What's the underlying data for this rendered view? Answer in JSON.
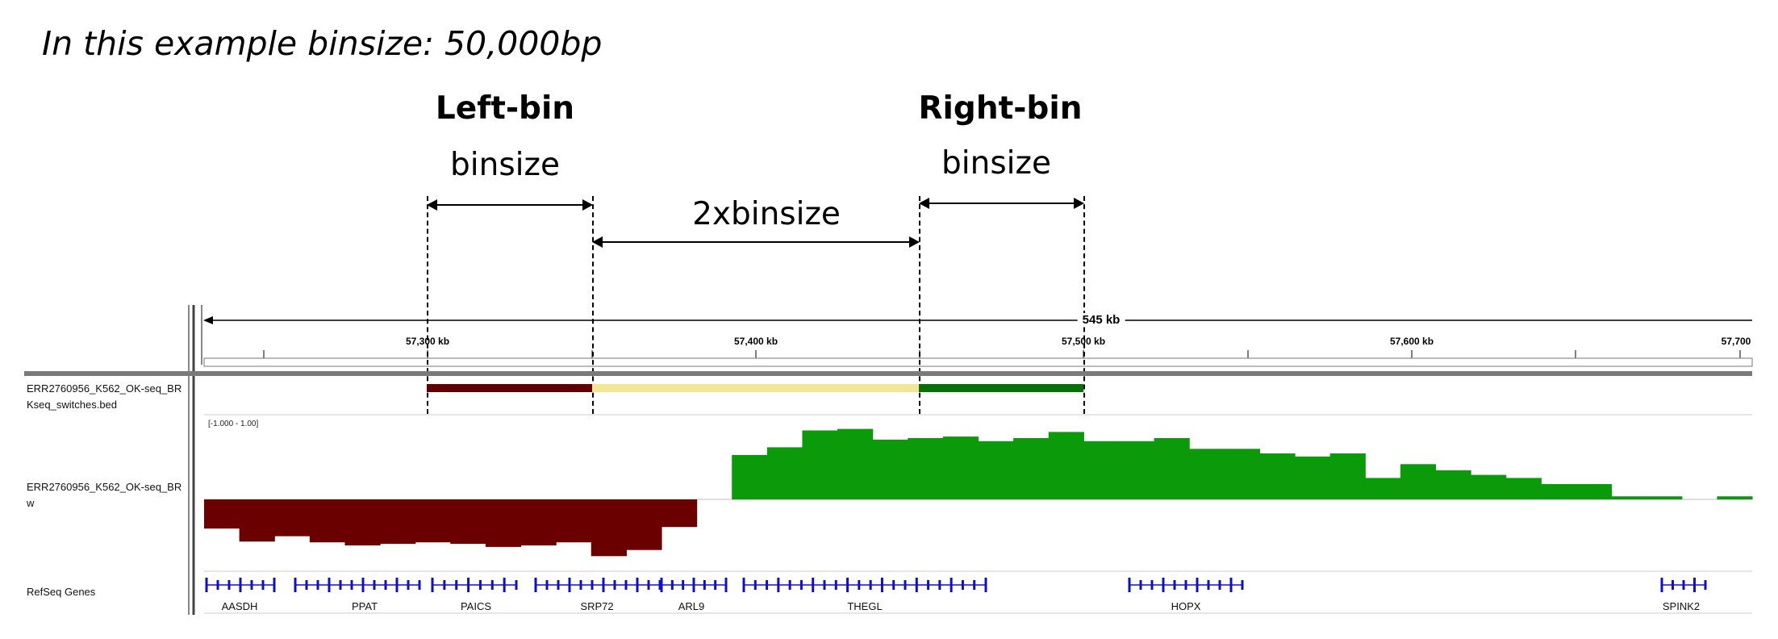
{
  "header": {
    "text": "In this example binsize: 50,000bp"
  },
  "annotations": {
    "left_bin_title": "Left-bin",
    "left_bin_size": "binsize",
    "middle_size": "2xbinsize",
    "right_bin_title": "Right-bin",
    "right_bin_size": "binsize"
  },
  "ruler": {
    "span_label": "545 kb",
    "ticks": [
      "57,300 kb",
      "57,400 kb",
      "57,500 kb",
      "57,600 kb",
      "57,700"
    ]
  },
  "tracks": [
    {
      "name_line1": "ERR2760956_K562_OK-seq_BR",
      "name_line2": "Kseq_switches.bed"
    },
    {
      "name_line1": "ERR2760956_K562_OK-seq_BR",
      "name_line2": "w",
      "data_range": "[-1.000 - 1.00]"
    },
    {
      "name_line1": "RefSeq Genes",
      "name_line2": ""
    }
  ],
  "switch_segments": [
    {
      "color": "#5e0000"
    },
    {
      "color": "#f2e594"
    },
    {
      "color": "#0a6e0a"
    }
  ],
  "signal": {
    "positive_color": "#0a9a0a",
    "negative_color": "#6b0000",
    "values": [
      -0.38,
      -0.55,
      -0.48,
      -0.56,
      -0.6,
      -0.58,
      -0.56,
      -0.58,
      -0.62,
      -0.6,
      -0.56,
      -0.74,
      -0.66,
      -0.36,
      0.0,
      0.58,
      0.68,
      0.9,
      0.92,
      0.78,
      0.8,
      0.82,
      0.76,
      0.8,
      0.88,
      0.76,
      0.76,
      0.8,
      0.66,
      0.66,
      0.6,
      0.56,
      0.6,
      0.28,
      0.46,
      0.38,
      0.32,
      0.28,
      0.2,
      0.2,
      0.04,
      0.04,
      0.0,
      0.04
    ]
  },
  "genes": [
    "AASDH",
    "PPAT",
    "PAICS",
    "SRP72",
    "ARL9",
    "THEGL",
    "HOPX",
    "SPINK2"
  ],
  "gene_color": "#1010c0"
}
